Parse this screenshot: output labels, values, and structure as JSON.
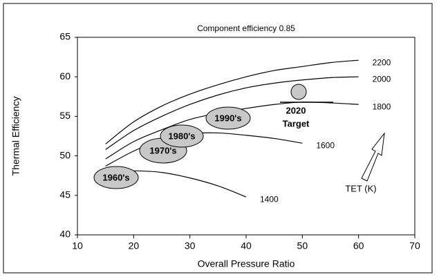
{
  "chart_data": {
    "type": "line",
    "title": "Component efficiency 0.85",
    "xlabel": "Overall Pressure Ratio",
    "ylabel": "Thermal Efficiency",
    "xlim": [
      10,
      70
    ],
    "xticks": [
      10,
      20,
      30,
      40,
      50,
      60,
      70
    ],
    "ylim": [
      40,
      65
    ],
    "yticks": [
      40,
      45,
      50,
      55,
      60,
      65
    ],
    "grid": false,
    "series": [
      {
        "name": "2200",
        "color": "#000000",
        "x": [
          15,
          20,
          25,
          30,
          35,
          40,
          45,
          50,
          55,
          60
        ],
        "values": [
          51.5,
          54.3,
          56.3,
          57.8,
          59.0,
          60.0,
          60.8,
          61.3,
          61.8,
          62.1
        ]
      },
      {
        "name": "2000",
        "color": "#000000",
        "x": [
          15,
          20,
          25,
          30,
          35,
          40,
          45,
          50,
          55,
          60
        ],
        "values": [
          50.8,
          53.2,
          55.0,
          56.5,
          57.7,
          58.6,
          59.2,
          59.6,
          59.9,
          60.0
        ]
      },
      {
        "name": "1800",
        "color": "#000000",
        "x": [
          15,
          20,
          25,
          30,
          35,
          40,
          45,
          50,
          55,
          60
        ],
        "values": [
          49.6,
          51.8,
          53.3,
          54.6,
          55.4,
          56.0,
          56.5,
          56.8,
          56.7,
          56.5
        ]
      },
      {
        "name": "1600",
        "color": "#000000",
        "x": [
          15,
          20,
          25,
          30,
          35,
          40,
          45,
          50
        ],
        "values": [
          48.7,
          50.6,
          52.0,
          52.8,
          52.9,
          52.6,
          52.2,
          51.6
        ]
      },
      {
        "name": "1400",
        "color": "#000000",
        "x": [
          15,
          20,
          25,
          30,
          35,
          40
        ],
        "values": [
          48.0,
          48.1,
          47.9,
          47.2,
          46.2,
          44.8
        ]
      }
    ],
    "annotations": [
      "1960's",
      "1970's",
      "1980's",
      "1990's",
      "2020",
      "Target",
      "TET (K)"
    ]
  }
}
